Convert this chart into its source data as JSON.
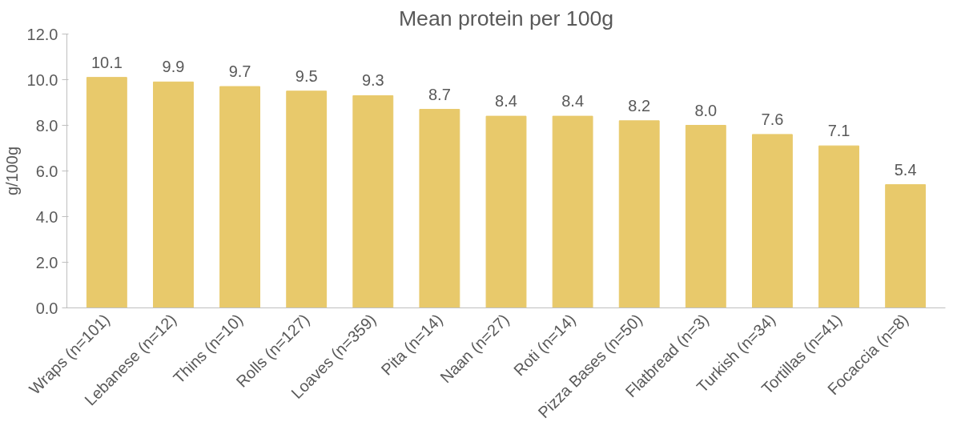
{
  "chart_data": {
    "type": "bar",
    "title": "Mean protein per 100g",
    "ylabel": "g/100g",
    "categories": [
      "Wraps (n=101)",
      "Lebanese (n=12)",
      "Thins (n=10)",
      "Rolls (n=127)",
      "Loaves (n=359)",
      "Pita (n=14)",
      "Naan (n=27)",
      "Roti (n=14)",
      "Pizza Bases (n=50)",
      "Flatbread (n=3)",
      "Turkish (n=34)",
      "Tortillas (n=41)",
      "Focaccia (n=8)"
    ],
    "values": [
      10.1,
      9.9,
      9.7,
      9.5,
      9.3,
      8.7,
      8.4,
      8.4,
      8.2,
      8.0,
      7.6,
      7.1,
      5.4
    ],
    "value_labels": [
      "10.1",
      "9.9",
      "9.7",
      "9.5",
      "9.3",
      "8.7",
      "8.4",
      "8.4",
      "8.2",
      "8.0",
      "7.6",
      "7.1",
      "5.4"
    ],
    "color": "#e8c96b",
    "ylim": [
      0,
      12
    ],
    "yticks": [
      {
        "value": 0,
        "label": "0.0"
      },
      {
        "value": 2,
        "label": "2.0"
      },
      {
        "value": 4,
        "label": "4.0"
      },
      {
        "value": 6,
        "label": "6.0"
      },
      {
        "value": 8,
        "label": "8.0"
      },
      {
        "value": 10,
        "label": "10.0"
      },
      {
        "value": 12,
        "label": "12.0"
      }
    ],
    "grid": false
  }
}
